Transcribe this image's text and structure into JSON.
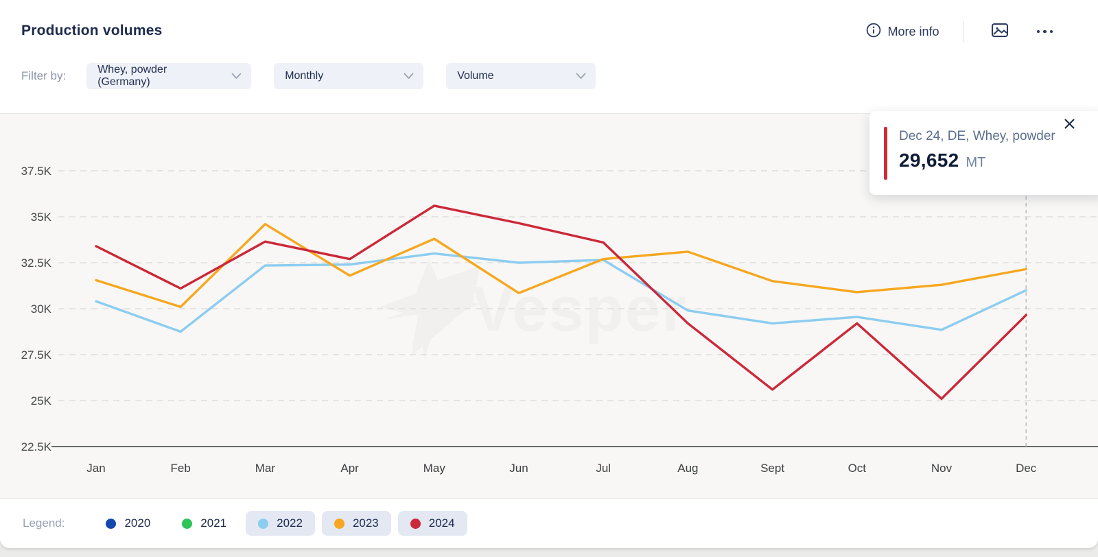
{
  "header": {
    "title": "Production volumes",
    "more_info_label": "More info"
  },
  "filters": {
    "label": "Filter by:",
    "dropdowns": [
      {
        "name": "product-filter",
        "value": "Whey, powder (Germany)"
      },
      {
        "name": "frequency-filter",
        "value": "Monthly"
      },
      {
        "name": "metric-filter",
        "value": "Volume"
      }
    ]
  },
  "tooltip": {
    "label": "Dec 24, DE, Whey, powder",
    "value": "29,652",
    "unit": "MT"
  },
  "legend": {
    "label": "Legend:",
    "items": [
      {
        "label": "2020",
        "color": "#1448ad",
        "active": false
      },
      {
        "label": "2021",
        "color": "#2cc558",
        "active": false
      },
      {
        "label": "2022",
        "color": "#8ccdf0",
        "active": true
      },
      {
        "label": "2023",
        "color": "#f6a71f",
        "active": true
      },
      {
        "label": "2024",
        "color": "#cb2839",
        "active": true
      }
    ]
  },
  "watermark": {
    "text": "Vesper"
  },
  "chart_data": {
    "type": "line",
    "title": "Production volumes",
    "unit": "MT (thousands)",
    "x": [
      "Jan",
      "Feb",
      "Mar",
      "Apr",
      "May",
      "Jun",
      "Jul",
      "Aug",
      "Sept",
      "Oct",
      "Nov",
      "Dec"
    ],
    "ylim": [
      22.5,
      38.9
    ],
    "ytick_values": [
      37.5,
      35,
      32.5,
      30,
      27.5,
      25,
      22.5
    ],
    "ytick_labels": [
      "37.5K",
      "35K",
      "32.5K",
      "30K",
      "27.5K",
      "25K",
      "22.5K"
    ],
    "grid": "dashed-horizontal",
    "legend_position": "bottom",
    "highlight": {
      "series": "2024",
      "x": "Dec",
      "value_mt": 29652
    },
    "series": [
      {
        "name": "2020",
        "color": "#1448ad",
        "visible": false,
        "values": []
      },
      {
        "name": "2021",
        "color": "#2cc558",
        "visible": false,
        "values": []
      },
      {
        "name": "2022",
        "color": "#8ccdf0",
        "visible": true,
        "values": [
          30.4,
          28.75,
          32.35,
          32.4,
          33.0,
          32.5,
          32.65,
          29.9,
          29.2,
          29.55,
          28.85,
          31.0
        ]
      },
      {
        "name": "2023",
        "color": "#f6a71f",
        "visible": true,
        "values": [
          31.55,
          30.1,
          34.6,
          31.8,
          33.8,
          30.85,
          32.7,
          33.1,
          31.5,
          30.9,
          31.3,
          32.15
        ]
      },
      {
        "name": "2024",
        "color": "#cb2839",
        "visible": true,
        "values": [
          33.4,
          31.1,
          33.65,
          32.7,
          35.6,
          34.65,
          33.6,
          29.2,
          25.6,
          29.2,
          25.1,
          29.652
        ]
      }
    ]
  }
}
